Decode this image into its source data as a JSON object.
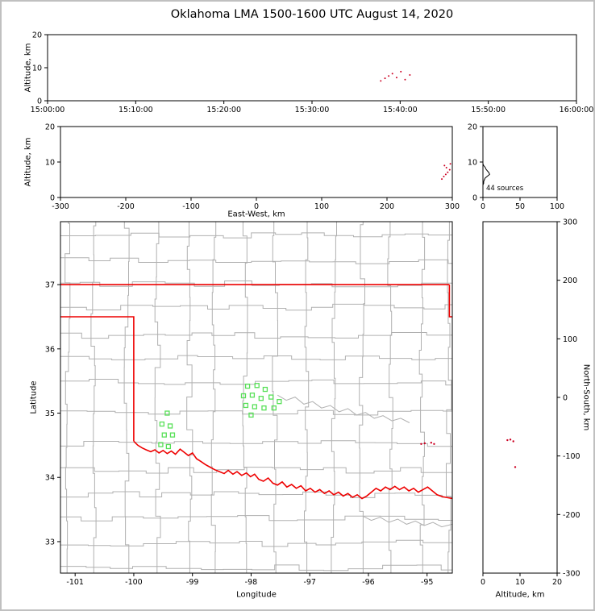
{
  "title": "Oklahoma LMA 1500-1600 UTC August 14, 2020",
  "labels": {
    "altitude_km": "Altitude, km",
    "east_west": "East-West, km",
    "longitude": "Longitude",
    "latitude": "Latitude",
    "north_south": "North-South, km"
  },
  "colors": {
    "axis": "#000000",
    "county": "#b0b0b0",
    "river": "#b0b0b0",
    "state_border": "#ee0000",
    "station": "#58e058",
    "source": "#cc0022",
    "histogram": "#000000"
  },
  "chart_data": [
    {
      "id": "time_height",
      "name": "altitude-vs-time",
      "type": "scatter",
      "ylabel": "Altitude, km",
      "ylim": [
        0,
        20
      ],
      "yticks": [
        0,
        10,
        20
      ],
      "xtick_labels": [
        "15:00:00",
        "15:10:00",
        "15:20:00",
        "15:30:00",
        "15:40:00",
        "15:50:00",
        "16:00:00"
      ],
      "points_time_frac_alt_km": [
        [
          0.63,
          6.0
        ],
        [
          0.638,
          6.8
        ],
        [
          0.645,
          7.5
        ],
        [
          0.652,
          8.2
        ],
        [
          0.66,
          7.0
        ],
        [
          0.668,
          8.8
        ],
        [
          0.676,
          6.4
        ],
        [
          0.685,
          7.8
        ]
      ]
    },
    {
      "id": "ew_height",
      "name": "altitude-vs-east-west",
      "type": "scatter",
      "xlabel": "East-West, km",
      "xlim": [
        -300,
        300
      ],
      "xticks": [
        -300,
        -200,
        -100,
        0,
        100,
        200,
        300
      ],
      "ylabel": "Altitude, km",
      "ylim": [
        0,
        20
      ],
      "yticks": [
        0,
        10,
        20
      ],
      "points_ew_km_alt_km": [
        [
          284,
          5.2
        ],
        [
          287,
          5.9
        ],
        [
          290,
          6.5
        ],
        [
          293,
          7.1
        ],
        [
          296,
          7.8
        ],
        [
          291,
          8.4
        ],
        [
          288,
          9.0
        ],
        [
          297,
          9.5
        ]
      ]
    },
    {
      "id": "source_histogram",
      "name": "altitude-histogram",
      "type": "line",
      "annotation": "44 sources",
      "total_sources": 44,
      "xlim": [
        0,
        100
      ],
      "xticks": [
        0,
        50,
        100
      ],
      "ylim": [
        0,
        20
      ],
      "yticks": [
        0,
        10,
        20
      ],
      "profile_count_alt_km": [
        [
          0,
          3.5
        ],
        [
          1,
          4.0
        ],
        [
          1,
          4.5
        ],
        [
          2,
          5.0
        ],
        [
          3,
          5.5
        ],
        [
          6,
          6.0
        ],
        [
          9,
          6.5
        ],
        [
          8,
          7.0
        ],
        [
          6,
          7.5
        ],
        [
          4,
          8.0
        ],
        [
          3,
          8.5
        ],
        [
          1,
          9.0
        ],
        [
          0,
          9.5
        ]
      ]
    },
    {
      "id": "map",
      "name": "plan-view-map",
      "type": "scatter",
      "xlabel": "Longitude",
      "xlim": [
        -101.25,
        -94.57
      ],
      "xticks": [
        -101,
        -100,
        -99,
        -98,
        -97,
        -96,
        -95
      ],
      "ylabel": "Latitude",
      "ylim": [
        32.51,
        37.98
      ],
      "yticks": [
        33,
        34,
        35,
        36,
        37
      ],
      "stations_lon_lat": [
        [
          -99.43,
          35.0
        ],
        [
          -99.52,
          34.83
        ],
        [
          -99.38,
          34.8
        ],
        [
          -99.48,
          34.66
        ],
        [
          -99.34,
          34.66
        ],
        [
          -99.54,
          34.51
        ],
        [
          -99.41,
          34.48
        ],
        [
          -98.06,
          35.42
        ],
        [
          -97.9,
          35.43
        ],
        [
          -97.76,
          35.37
        ],
        [
          -98.13,
          35.27
        ],
        [
          -97.98,
          35.28
        ],
        [
          -97.83,
          35.23
        ],
        [
          -97.66,
          35.25
        ],
        [
          -98.09,
          35.12
        ],
        [
          -97.94,
          35.1
        ],
        [
          -97.78,
          35.08
        ],
        [
          -97.61,
          35.08
        ],
        [
          -97.52,
          35.18
        ],
        [
          -98.0,
          34.97
        ]
      ],
      "sources_lon_lat": [
        [
          -95.1,
          34.52
        ],
        [
          -95.04,
          34.53
        ],
        [
          -94.93,
          34.54
        ],
        [
          -94.88,
          34.52
        ]
      ],
      "state_border": {
        "north": [
          [
            -101.25,
            37.0
          ],
          [
            -94.62,
            37.0
          ]
        ],
        "east": [
          [
            -94.62,
            37.0
          ],
          [
            -94.62,
            36.5
          ],
          [
            -94.57,
            36.5
          ]
        ],
        "west": [
          [
            -101.25,
            36.5
          ],
          [
            -100.0,
            36.5
          ],
          [
            -100.0,
            34.563
          ]
        ],
        "red_river": [
          [
            -100.0,
            34.563
          ],
          [
            -99.93,
            34.5
          ],
          [
            -99.86,
            34.46
          ],
          [
            -99.79,
            34.43
          ],
          [
            -99.71,
            34.4
          ],
          [
            -99.64,
            34.43
          ],
          [
            -99.57,
            34.38
          ],
          [
            -99.5,
            34.42
          ],
          [
            -99.43,
            34.37
          ],
          [
            -99.36,
            34.41
          ],
          [
            -99.29,
            34.36
          ],
          [
            -99.21,
            34.44
          ],
          [
            -99.14,
            34.39
          ],
          [
            -99.07,
            34.34
          ],
          [
            -99.0,
            34.38
          ],
          [
            -98.93,
            34.29
          ],
          [
            -98.86,
            34.25
          ],
          [
            -98.78,
            34.2
          ],
          [
            -98.7,
            34.16
          ],
          [
            -98.62,
            34.12
          ],
          [
            -98.54,
            34.09
          ],
          [
            -98.46,
            34.06
          ],
          [
            -98.39,
            34.11
          ],
          [
            -98.31,
            34.05
          ],
          [
            -98.24,
            34.09
          ],
          [
            -98.16,
            34.03
          ],
          [
            -98.08,
            34.07
          ],
          [
            -98.01,
            34.01
          ],
          [
            -97.94,
            34.05
          ],
          [
            -97.87,
            33.97
          ],
          [
            -97.79,
            33.94
          ],
          [
            -97.71,
            33.99
          ],
          [
            -97.63,
            33.91
          ],
          [
            -97.55,
            33.88
          ],
          [
            -97.47,
            33.93
          ],
          [
            -97.39,
            33.85
          ],
          [
            -97.31,
            33.89
          ],
          [
            -97.23,
            33.83
          ],
          [
            -97.15,
            33.87
          ],
          [
            -97.07,
            33.79
          ],
          [
            -96.99,
            33.83
          ],
          [
            -96.91,
            33.77
          ],
          [
            -96.83,
            33.81
          ],
          [
            -96.75,
            33.75
          ],
          [
            -96.67,
            33.79
          ],
          [
            -96.59,
            33.73
          ],
          [
            -96.51,
            33.77
          ],
          [
            -96.43,
            33.71
          ],
          [
            -96.35,
            33.75
          ],
          [
            -96.27,
            33.69
          ],
          [
            -96.19,
            33.73
          ],
          [
            -96.11,
            33.67
          ],
          [
            -96.03,
            33.71
          ],
          [
            -95.95,
            33.77
          ],
          [
            -95.87,
            33.83
          ],
          [
            -95.79,
            33.79
          ],
          [
            -95.71,
            33.85
          ],
          [
            -95.63,
            33.81
          ],
          [
            -95.55,
            33.86
          ],
          [
            -95.47,
            33.81
          ],
          [
            -95.39,
            33.85
          ],
          [
            -95.31,
            33.79
          ],
          [
            -95.23,
            33.83
          ],
          [
            -95.15,
            33.77
          ],
          [
            -95.07,
            33.81
          ],
          [
            -94.99,
            33.85
          ],
          [
            -94.91,
            33.79
          ],
          [
            -94.83,
            33.73
          ],
          [
            -94.74,
            33.7
          ],
          [
            -94.57,
            33.67
          ]
        ]
      },
      "counties": {
        "seed": 20,
        "lat_step": 0.43,
        "lon_step": 0.47,
        "jitter": 0.1
      },
      "rivers": [
        [
          [
            -97.55,
            35.28
          ],
          [
            -97.4,
            35.2
          ],
          [
            -97.25,
            35.25
          ],
          [
            -97.1,
            35.14
          ],
          [
            -96.95,
            35.18
          ],
          [
            -96.8,
            35.08
          ],
          [
            -96.65,
            35.12
          ],
          [
            -96.5,
            35.02
          ],
          [
            -96.35,
            35.07
          ],
          [
            -96.2,
            34.97
          ],
          [
            -96.05,
            35.01
          ],
          [
            -95.9,
            34.92
          ],
          [
            -95.75,
            34.96
          ],
          [
            -95.6,
            34.88
          ],
          [
            -95.45,
            34.92
          ],
          [
            -95.3,
            34.85
          ]
        ],
        [
          [
            -96.1,
            33.4
          ],
          [
            -95.95,
            33.33
          ],
          [
            -95.8,
            33.38
          ],
          [
            -95.65,
            33.3
          ],
          [
            -95.5,
            33.35
          ],
          [
            -95.35,
            33.27
          ],
          [
            -95.2,
            33.32
          ],
          [
            -95.05,
            33.25
          ],
          [
            -94.9,
            33.3
          ],
          [
            -94.75,
            33.23
          ],
          [
            -94.57,
            33.27
          ]
        ]
      ]
    },
    {
      "id": "ns_height",
      "name": "north-south-vs-altitude",
      "type": "scatter",
      "xlabel": "Altitude, km",
      "xlim": [
        0,
        20
      ],
      "xticks": [
        0,
        10,
        20
      ],
      "ylabel": "North-South, km",
      "ylim": [
        -300,
        300
      ],
      "yticks": [
        -300,
        -200,
        -100,
        0,
        100,
        200,
        300
      ],
      "points_alt_km_ns_km": [
        [
          6.6,
          -73
        ],
        [
          7.4,
          -72
        ],
        [
          8.2,
          -75
        ],
        [
          8.7,
          -119
        ]
      ]
    }
  ]
}
